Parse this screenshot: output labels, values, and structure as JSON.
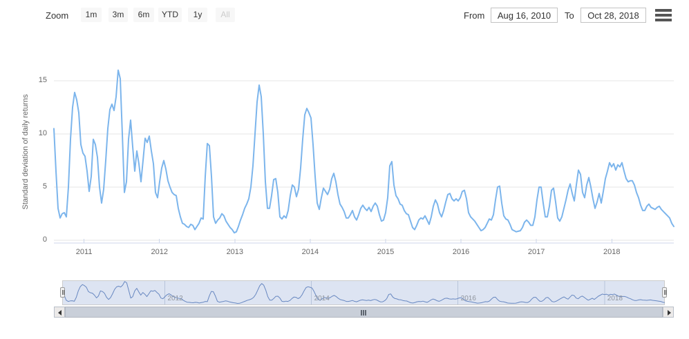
{
  "range_selector": {
    "zoom_label": "Zoom",
    "buttons": [
      {
        "label": "1m",
        "enabled": true
      },
      {
        "label": "3m",
        "enabled": true
      },
      {
        "label": "6m",
        "enabled": true
      },
      {
        "label": "YTD",
        "enabled": true
      },
      {
        "label": "1y",
        "enabled": true
      },
      {
        "label": "All",
        "enabled": false
      }
    ],
    "from_label": "From",
    "from_value": "Aug 16, 2010",
    "to_label": "To",
    "to_value": "Oct 28, 2018"
  },
  "icons": {
    "menu": "hamburger-menu",
    "scroll_left": "left-arrow",
    "scroll_right": "right-arrow",
    "navigator_handle": "grip-lines"
  },
  "colors": {
    "series_line": "#7cb5ec",
    "navigator_line": "#6787c0",
    "navigator_fill": "rgba(102,133,194,0.22)",
    "navigator_outline": "#cccccc",
    "navigator_grid": "#b7c4da",
    "gridline": "#e6e6e6",
    "axis_line": "#ccd6eb",
    "tick_label": "#666666",
    "nav_label": "#8f949c",
    "button_bg": "#f7f7f7",
    "button_text": "#333333",
    "button_disabled_text": "#cccccc",
    "scrollbar_bar": "#c9cfd9",
    "scrollbar_button_bg": "#eceae9",
    "menu_icon": "#555555"
  },
  "chart_data": {
    "type": "line",
    "title": "",
    "xlabel": "",
    "ylabel": "Standard deviation of daily returns",
    "grid": true,
    "legend": false,
    "ylim": [
      0,
      16.4
    ],
    "yticks": [
      0,
      5,
      10,
      15
    ],
    "xticks_main": [
      2011,
      2012,
      2013,
      2014,
      2015,
      2016,
      2017,
      2018
    ],
    "xticks_navigator": [
      2012,
      2014,
      2016,
      2018
    ],
    "x_start": 2010.6,
    "x_end": 2018.8225,
    "x_step": 0.0275,
    "series": [
      {
        "name": "Standard deviation of daily returns",
        "color": "#7cb5ec",
        "values": [
          10.5,
          6.5,
          3,
          2.1,
          2.5,
          2.6,
          2.2,
          5,
          9.5,
          12.5,
          13.9,
          13.2,
          12,
          9,
          8.2,
          7.9,
          6.5,
          4.6,
          6,
          9.5,
          9,
          7.8,
          5,
          3.5,
          4.8,
          7.5,
          10.5,
          12.3,
          12.8,
          12.2,
          13.5,
          16,
          15.2,
          10,
          4.5,
          5.5,
          9.5,
          11.3,
          8.8,
          6.5,
          8.4,
          7.2,
          5.5,
          7.5,
          9.6,
          9.2,
          9.8,
          8.4,
          7.2,
          4.5,
          4,
          5.5,
          6.8,
          7.5,
          6.7,
          5.6,
          5,
          4.5,
          4.3,
          4.2,
          3,
          2.2,
          1.6,
          1.5,
          1.3,
          1.2,
          1.5,
          1.4,
          1,
          1.3,
          1.6,
          2.1,
          2,
          6,
          9.1,
          8.9,
          6,
          2.2,
          1.6,
          1.9,
          2.1,
          2.5,
          2.3,
          1.8,
          1.5,
          1.2,
          1,
          0.7,
          0.8,
          1.3,
          1.9,
          2.4,
          3,
          3.4,
          3.9,
          5,
          7,
          10,
          13,
          14.6,
          13.5,
          10,
          5.5,
          3,
          3,
          4.2,
          5.7,
          5.8,
          4.5,
          2.2,
          2,
          2.3,
          2.1,
          2.8,
          4.2,
          5.2,
          5,
          4.1,
          4.8,
          6.8,
          9.5,
          11.8,
          12.4,
          12,
          11.5,
          9,
          6,
          3.5,
          2.9,
          4,
          4.9,
          4.6,
          4.3,
          4.8,
          5.8,
          6.3,
          5.5,
          4.3,
          3.4,
          3.1,
          2.7,
          2.1,
          2.1,
          2.4,
          2.8,
          2.2,
          1.9,
          2.4,
          3,
          3.3,
          3,
          2.8,
          3.1,
          2.7,
          3.2,
          3.5,
          3.2,
          2.4,
          1.8,
          1.9,
          2.6,
          4,
          7,
          7.4,
          5.2,
          4.2,
          3.9,
          3.4,
          3.3,
          2.8,
          2.5,
          2.4,
          1.8,
          1.2,
          1,
          1.4,
          1.9,
          2.1,
          2,
          2.3,
          1.9,
          1.5,
          2.2,
          3.2,
          3.8,
          3.4,
          2.6,
          2.2,
          2.8,
          3.6,
          4.3,
          4.4,
          3.9,
          3.7,
          3.9,
          3.7,
          4,
          4.6,
          4.7,
          3.9,
          2.6,
          2.2,
          2,
          1.8,
          1.5,
          1.2,
          0.9,
          1,
          1.2,
          1.6,
          2,
          1.9,
          2.4,
          3.8,
          5,
          5.1,
          3.5,
          2.3,
          2,
          1.9,
          1.5,
          1,
          0.9,
          0.8,
          0.85,
          0.9,
          1.2,
          1.7,
          1.9,
          1.7,
          1.4,
          1.4,
          2.2,
          3.8,
          5,
          5,
          3.5,
          2.2,
          2.2,
          3.2,
          4.7,
          4.9,
          3.6,
          2.1,
          1.8,
          2.2,
          3,
          3.8,
          4.7,
          5.3,
          4.4,
          3.7,
          5.2,
          6.6,
          6.2,
          4.5,
          4,
          5.2,
          5.9,
          5,
          3.9,
          3,
          3.6,
          4.4,
          3.5,
          4.6,
          5.8,
          6.5,
          7.3,
          6.9,
          7.2,
          6.6,
          7.1,
          6.9,
          7.3,
          6.5,
          5.8,
          5.5,
          5.6,
          5.6,
          5.2,
          4.5,
          4,
          3.3,
          2.8,
          2.8,
          3.2,
          3.4,
          3.1,
          3,
          2.9,
          3.1,
          3.2,
          2.9,
          2.7,
          2.5,
          2.3,
          2.1,
          1.6,
          1.3
        ]
      }
    ],
    "navigator_shows_same_series": true
  }
}
